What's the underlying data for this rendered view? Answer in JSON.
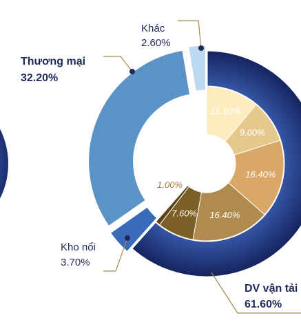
{
  "chart_data": {
    "type": "donut",
    "categories": [
      "DV vận tải",
      "Kho nổi",
      "Thương mại",
      "Khác"
    ],
    "values": [
      61.6,
      3.7,
      32.2,
      2.6
    ],
    "value_labels": [
      "61.60%",
      "3.70%",
      "32.20%",
      "2.60%"
    ],
    "colors": [
      "#1f3a8a",
      "#3a6bb8",
      "#5b93c7",
      "#bcd9f0"
    ],
    "inner": {
      "type": "pie",
      "values": [
        11.1,
        9.0,
        16.4,
        16.4,
        7.6,
        1.0
      ],
      "value_labels": [
        "11.10%",
        "9.00%",
        "16.40%",
        "16.40%",
        "7.60%",
        "1.00%"
      ],
      "colors": [
        "#fdecc0",
        "#e6c88c",
        "#d9a866",
        "#b08a4f",
        "#7d5e25",
        "#5c4318"
      ]
    }
  }
}
